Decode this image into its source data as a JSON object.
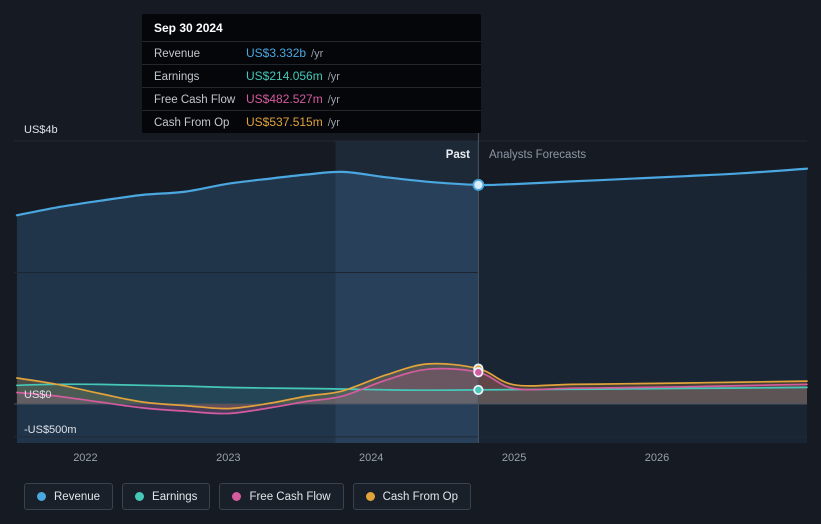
{
  "tooltip": {
    "date": "Sep 30 2024",
    "rows": [
      {
        "label": "Revenue",
        "value": "US$3.332b",
        "suffix": "/yr",
        "color": "#4ba7e0"
      },
      {
        "label": "Earnings",
        "value": "US$214.056m",
        "suffix": "/yr",
        "color": "#45c8b8"
      },
      {
        "label": "Free Cash Flow",
        "value": "US$482.527m",
        "suffix": "/yr",
        "color": "#d45c9e"
      },
      {
        "label": "Cash From Op",
        "value": "US$537.515m",
        "suffix": "/yr",
        "color": "#e2a33c"
      }
    ]
  },
  "labels": {
    "past": "Past",
    "forecast": "Analysts Forecasts"
  },
  "y_axis": {
    "top": "US$4b",
    "zero": "US$0",
    "bottom": "-US$500m"
  },
  "legend": {
    "items": [
      {
        "label": "Revenue",
        "color": "#4ba7e0"
      },
      {
        "label": "Earnings",
        "color": "#45c8b8"
      },
      {
        "label": "Free Cash Flow",
        "color": "#d45c9e"
      },
      {
        "label": "Cash From Op",
        "color": "#e2a33c"
      }
    ]
  },
  "chart_data": {
    "type": "area",
    "title": "Past and forecast revenue, earnings and cash flow",
    "x_ticks": [
      2022,
      2023,
      2024,
      2025,
      2026
    ],
    "year_range": [
      2021.5,
      2027.05
    ],
    "top_value_m": 4000,
    "gridlines_m": [
      4000,
      2000,
      -500
    ],
    "zero_line_m": 0,
    "divider_year": 2024.75,
    "highlight_start_year": 2023.75,
    "x": [
      2021.52,
      2021.8,
      2022.1,
      2022.4,
      2022.7,
      2023.0,
      2023.3,
      2023.55,
      2023.8,
      2024.1,
      2024.4,
      2024.75,
      2025.0,
      2025.4,
      2025.8,
      2026.2,
      2026.6,
      2027.05
    ],
    "series": [
      {
        "name": "Revenue",
        "color": "#4ba7e0",
        "fill_past": "rgba(73,135,190,0.25)",
        "fill_forecast": "rgba(73,135,190,0.10)",
        "width": 2.2,
        "values": [
          2870,
          2990,
          3090,
          3180,
          3230,
          3350,
          3430,
          3490,
          3530,
          3450,
          3380,
          3332,
          3345,
          3385,
          3425,
          3465,
          3510,
          3580
        ]
      },
      {
        "name": "Earnings",
        "color": "#45c8b8",
        "fill": "rgba(69,200,184,0.12)",
        "width": 1.7,
        "values": [
          285,
          300,
          298,
          285,
          272,
          252,
          242,
          236,
          228,
          216,
          210,
          214,
          219,
          224,
          230,
          237,
          244,
          252
        ]
      },
      {
        "name": "Free Cash Flow",
        "color": "#d45c9e",
        "fill": "rgba(212,92,158,0.20)",
        "width": 1.7,
        "values": [
          175,
          120,
          30,
          -60,
          -110,
          -145,
          -55,
          40,
          120,
          360,
          530,
          482,
          235,
          240,
          250,
          262,
          280,
          300
        ]
      },
      {
        "name": "Cash From Op",
        "color": "#e2a33c",
        "fill": "rgba(226,163,60,0.22)",
        "width": 1.7,
        "values": [
          395,
          300,
          160,
          30,
          -25,
          -70,
          15,
          120,
          200,
          440,
          610,
          537,
          292,
          298,
          308,
          320,
          333,
          348
        ]
      }
    ],
    "markers_at_divider": [
      {
        "name": "Cash From Op",
        "value_m": 537.515
      },
      {
        "name": "Free Cash Flow",
        "value_m": 482.527
      },
      {
        "name": "Earnings",
        "value_m": 214.056
      },
      {
        "name": "Revenue",
        "value_m": 3332
      }
    ]
  }
}
